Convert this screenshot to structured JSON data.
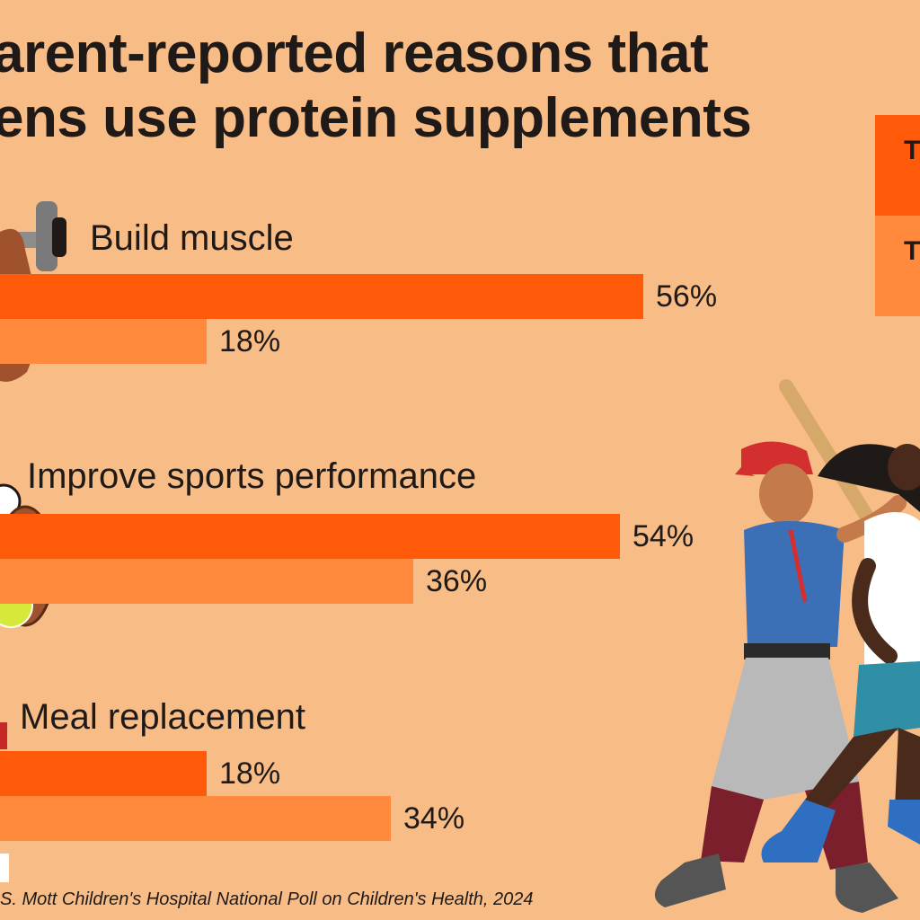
{
  "title": {
    "line1": "arent-reported reasons that",
    "line2": "ens use protein supplements"
  },
  "legend": [
    {
      "label": "T b",
      "color": "#ff5a0a"
    },
    {
      "label": "T g",
      "color": "#ff8a3d"
    }
  ],
  "chart_data": {
    "type": "bar",
    "title": "arent-reported reasons that ens use protein supplements",
    "categories": [
      "Build muscle",
      "Improve sports performance",
      "Meal replacement"
    ],
    "series": [
      {
        "name": "T b",
        "values": [
          56,
          54,
          18
        ],
        "labels": [
          "56%",
          "54%",
          "18%"
        ],
        "color": "#ff5a0a"
      },
      {
        "name": "T g",
        "values": [
          18,
          36,
          34
        ],
        "labels": [
          "18%",
          "36%",
          "34%"
        ],
        "color": "#ff8a3d"
      }
    ],
    "xlim": [
      0,
      100
    ],
    "grid": false,
    "legend_position": "top-right"
  },
  "source": "S. Mott Children's Hospital National Poll on Children's Health, 2024",
  "icons": [
    "dumbbell-icon",
    "sports-balls-icon",
    "meal-icon",
    "athletes-illustration"
  ]
}
